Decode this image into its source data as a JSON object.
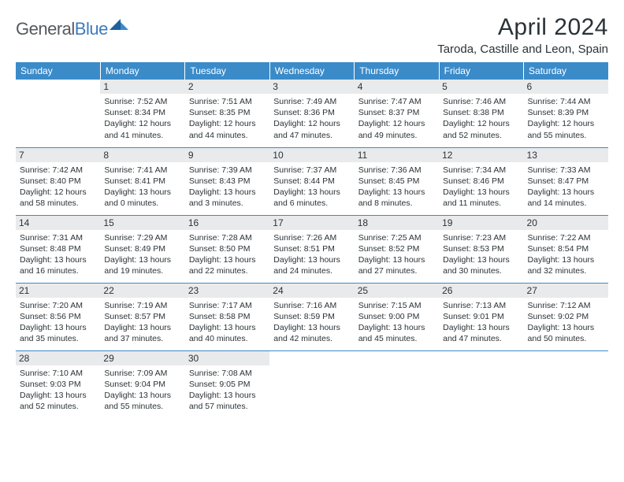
{
  "logo": {
    "part1": "General",
    "part2": "Blue"
  },
  "title": "April 2024",
  "location": "Taroda, Castille and Leon, Spain",
  "colors": {
    "header_bg": "#3b8bc9",
    "header_text": "#ffffff",
    "daynum_bg": "#e9eaec",
    "text": "#2b3236",
    "logo_gray": "#555a5e",
    "logo_blue": "#3b7bbf",
    "divider": "#3b8bc9"
  },
  "columns": [
    "Sunday",
    "Monday",
    "Tuesday",
    "Wednesday",
    "Thursday",
    "Friday",
    "Saturday"
  ],
  "weeks": [
    [
      null,
      {
        "n": "1",
        "sr": "7:52 AM",
        "ss": "8:34 PM",
        "dl": "12 hours and 41 minutes."
      },
      {
        "n": "2",
        "sr": "7:51 AM",
        "ss": "8:35 PM",
        "dl": "12 hours and 44 minutes."
      },
      {
        "n": "3",
        "sr": "7:49 AM",
        "ss": "8:36 PM",
        "dl": "12 hours and 47 minutes."
      },
      {
        "n": "4",
        "sr": "7:47 AM",
        "ss": "8:37 PM",
        "dl": "12 hours and 49 minutes."
      },
      {
        "n": "5",
        "sr": "7:46 AM",
        "ss": "8:38 PM",
        "dl": "12 hours and 52 minutes."
      },
      {
        "n": "6",
        "sr": "7:44 AM",
        "ss": "8:39 PM",
        "dl": "12 hours and 55 minutes."
      }
    ],
    [
      {
        "n": "7",
        "sr": "7:42 AM",
        "ss": "8:40 PM",
        "dl": "12 hours and 58 minutes."
      },
      {
        "n": "8",
        "sr": "7:41 AM",
        "ss": "8:41 PM",
        "dl": "13 hours and 0 minutes."
      },
      {
        "n": "9",
        "sr": "7:39 AM",
        "ss": "8:43 PM",
        "dl": "13 hours and 3 minutes."
      },
      {
        "n": "10",
        "sr": "7:37 AM",
        "ss": "8:44 PM",
        "dl": "13 hours and 6 minutes."
      },
      {
        "n": "11",
        "sr": "7:36 AM",
        "ss": "8:45 PM",
        "dl": "13 hours and 8 minutes."
      },
      {
        "n": "12",
        "sr": "7:34 AM",
        "ss": "8:46 PM",
        "dl": "13 hours and 11 minutes."
      },
      {
        "n": "13",
        "sr": "7:33 AM",
        "ss": "8:47 PM",
        "dl": "13 hours and 14 minutes."
      }
    ],
    [
      {
        "n": "14",
        "sr": "7:31 AM",
        "ss": "8:48 PM",
        "dl": "13 hours and 16 minutes."
      },
      {
        "n": "15",
        "sr": "7:29 AM",
        "ss": "8:49 PM",
        "dl": "13 hours and 19 minutes."
      },
      {
        "n": "16",
        "sr": "7:28 AM",
        "ss": "8:50 PM",
        "dl": "13 hours and 22 minutes."
      },
      {
        "n": "17",
        "sr": "7:26 AM",
        "ss": "8:51 PM",
        "dl": "13 hours and 24 minutes."
      },
      {
        "n": "18",
        "sr": "7:25 AM",
        "ss": "8:52 PM",
        "dl": "13 hours and 27 minutes."
      },
      {
        "n": "19",
        "sr": "7:23 AM",
        "ss": "8:53 PM",
        "dl": "13 hours and 30 minutes."
      },
      {
        "n": "20",
        "sr": "7:22 AM",
        "ss": "8:54 PM",
        "dl": "13 hours and 32 minutes."
      }
    ],
    [
      {
        "n": "21",
        "sr": "7:20 AM",
        "ss": "8:56 PM",
        "dl": "13 hours and 35 minutes."
      },
      {
        "n": "22",
        "sr": "7:19 AM",
        "ss": "8:57 PM",
        "dl": "13 hours and 37 minutes."
      },
      {
        "n": "23",
        "sr": "7:17 AM",
        "ss": "8:58 PM",
        "dl": "13 hours and 40 minutes."
      },
      {
        "n": "24",
        "sr": "7:16 AM",
        "ss": "8:59 PM",
        "dl": "13 hours and 42 minutes."
      },
      {
        "n": "25",
        "sr": "7:15 AM",
        "ss": "9:00 PM",
        "dl": "13 hours and 45 minutes."
      },
      {
        "n": "26",
        "sr": "7:13 AM",
        "ss": "9:01 PM",
        "dl": "13 hours and 47 minutes."
      },
      {
        "n": "27",
        "sr": "7:12 AM",
        "ss": "9:02 PM",
        "dl": "13 hours and 50 minutes."
      }
    ],
    [
      {
        "n": "28",
        "sr": "7:10 AM",
        "ss": "9:03 PM",
        "dl": "13 hours and 52 minutes."
      },
      {
        "n": "29",
        "sr": "7:09 AM",
        "ss": "9:04 PM",
        "dl": "13 hours and 55 minutes."
      },
      {
        "n": "30",
        "sr": "7:08 AM",
        "ss": "9:05 PM",
        "dl": "13 hours and 57 minutes."
      },
      null,
      null,
      null,
      null
    ]
  ],
  "labels": {
    "sunrise": "Sunrise:",
    "sunset": "Sunset:",
    "daylight": "Daylight:"
  }
}
